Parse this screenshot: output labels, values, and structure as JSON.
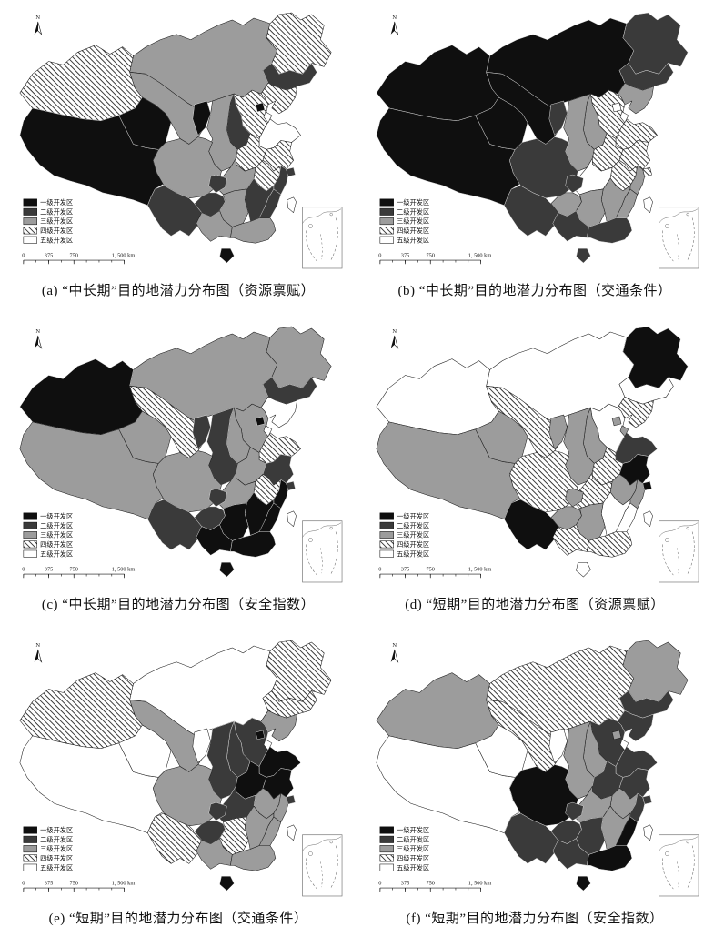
{
  "figure": {
    "north_label": "N",
    "legend": {
      "items": [
        {
          "label": "一级开发区",
          "level": 1,
          "fill": "#0f0f0f"
        },
        {
          "label": "二级开发区",
          "level": 2,
          "fill": "#3a3a3a"
        },
        {
          "label": "三级开发区",
          "level": 3,
          "fill": "#9c9c9c"
        },
        {
          "label": "四级开发区",
          "level": 4,
          "fill": "hatch"
        },
        {
          "label": "五级开发区",
          "level": 5,
          "fill": "#ffffff"
        }
      ]
    },
    "scalebar": {
      "tick_labels": [
        "0",
        "375",
        "750"
      ],
      "end_label": "1, 500 km"
    },
    "level_fills": {
      "1": "#0f0f0f",
      "2": "#3a3a3a",
      "3": "#9c9c9c",
      "4": "hatch",
      "5": "#ffffff"
    }
  },
  "maps": [
    {
      "id": "a",
      "caption": "(a) “中长期”目的地潜力分布图（资源禀赋）",
      "levels": {
        "xinjiang": 4,
        "tibet": 1,
        "qinghai": 1,
        "gansu": 3,
        "ningxia": 1,
        "neimenggu": 3,
        "heilongjiang": 4,
        "jilin": 2,
        "liaoning": 4,
        "hebei": 4,
        "beijing": 1,
        "tianjin": 5,
        "shanxi": 2,
        "shaanxi": 3,
        "shandong": 5,
        "henan": 4,
        "jiangsu": 4,
        "shanghai": 2,
        "anhui": 4,
        "hubei": 3,
        "zhejiang": 2,
        "fujian": 2,
        "jiangxi": 2,
        "hunan": 3,
        "chongqing": 2,
        "sichuan": 3,
        "guizhou": 2,
        "yunnan": 2,
        "guangxi": 3,
        "guangdong": 3,
        "hainan": 1,
        "taiwan": 5
      }
    },
    {
      "id": "b",
      "caption": "(b) “中长期”目的地潜力分布图（交通条件）",
      "levels": {
        "xinjiang": 1,
        "tibet": 1,
        "qinghai": 1,
        "gansu": 1,
        "ningxia": 2,
        "neimenggu": 1,
        "heilongjiang": 2,
        "jilin": 2,
        "liaoning": 3,
        "hebei": 4,
        "beijing": 5,
        "tianjin": 5,
        "shanxi": 3,
        "shaanxi": 3,
        "shandong": 4,
        "henan": 4,
        "jiangsu": 4,
        "shanghai": 4,
        "anhui": 4,
        "hubei": 5,
        "zhejiang": 3,
        "fujian": 3,
        "jiangxi": 3,
        "hunan": 3,
        "chongqing": 2,
        "sichuan": 2,
        "guizhou": 3,
        "yunnan": 2,
        "guangxi": 2,
        "guangdong": 2,
        "hainan": 2,
        "taiwan": 5
      }
    },
    {
      "id": "c",
      "caption": "(c) “中长期”目的地潜力分布图（安全指数）",
      "levels": {
        "xinjiang": 1,
        "tibet": 3,
        "qinghai": 3,
        "gansu": 4,
        "ningxia": 2,
        "neimenggu": 3,
        "heilongjiang": 3,
        "jilin": 2,
        "liaoning": 5,
        "hebei": 3,
        "beijing": 1,
        "tianjin": 5,
        "shanxi": 3,
        "shaanxi": 2,
        "shandong": 4,
        "henan": 3,
        "jiangsu": 2,
        "shanghai": 2,
        "anhui": 4,
        "hubei": 3,
        "zhejiang": 1,
        "fujian": 1,
        "jiangxi": 1,
        "hunan": 1,
        "chongqing": 2,
        "sichuan": 3,
        "guizhou": 2,
        "yunnan": 2,
        "guangxi": 1,
        "guangdong": 1,
        "hainan": 1,
        "taiwan": 5
      }
    },
    {
      "id": "d",
      "caption": "(d) “短期”目的地潜力分布图（资源禀赋）",
      "levels": {
        "xinjiang": 5,
        "tibet": 3,
        "qinghai": 3,
        "gansu": 4,
        "ningxia": 3,
        "neimenggu": 5,
        "heilongjiang": 1,
        "jilin": 5,
        "liaoning": 4,
        "hebei": 5,
        "beijing": 3,
        "tianjin": 3,
        "shanxi": 3,
        "shaanxi": 3,
        "shandong": 2,
        "henan": 4,
        "jiangsu": 1,
        "shanghai": 1,
        "anhui": 3,
        "hubei": 4,
        "zhejiang": 3,
        "fujian": 5,
        "jiangxi": 5,
        "hunan": 3,
        "chongqing": 3,
        "sichuan": 4,
        "guizhou": 3,
        "yunnan": 1,
        "guangxi": 4,
        "guangdong": 4,
        "hainan": 5,
        "taiwan": 5
      }
    },
    {
      "id": "e",
      "caption": "(e) “短期”目的地潜力分布图（交通条件）",
      "levels": {
        "xinjiang": 4,
        "tibet": 5,
        "qinghai": 5,
        "gansu": 3,
        "ningxia": 5,
        "neimenggu": 5,
        "heilongjiang": 4,
        "jilin": 4,
        "liaoning": 3,
        "hebei": 2,
        "beijing": 1,
        "tianjin": 5,
        "shanxi": 2,
        "shaanxi": 2,
        "shandong": 1,
        "henan": 1,
        "jiangsu": 1,
        "shanghai": 2,
        "anhui": 3,
        "hubei": 2,
        "zhejiang": 3,
        "fujian": 3,
        "jiangxi": 3,
        "hunan": 4,
        "chongqing": 2,
        "sichuan": 3,
        "guizhou": 2,
        "yunnan": 4,
        "guangxi": 3,
        "guangdong": 3,
        "hainan": 1,
        "taiwan": 5
      }
    },
    {
      "id": "f",
      "caption": "(f) “短期”目的地潜力分布图（安全指数）",
      "levels": {
        "xinjiang": 3,
        "tibet": 5,
        "qinghai": 5,
        "gansu": 4,
        "ningxia": 5,
        "neimenggu": 4,
        "heilongjiang": 3,
        "jilin": 2,
        "liaoning": 2,
        "hebei": 2,
        "beijing": 3,
        "tianjin": 5,
        "shanxi": 3,
        "shaanxi": 3,
        "shandong": 2,
        "henan": 2,
        "jiangsu": 2,
        "shanghai": 2,
        "anhui": 3,
        "hubei": 3,
        "zhejiang": 2,
        "fujian": 1,
        "jiangxi": 3,
        "hunan": 2,
        "chongqing": 2,
        "sichuan": 1,
        "guizhou": 2,
        "yunnan": 2,
        "guangxi": 2,
        "guangdong": 1,
        "hainan": 1,
        "taiwan": 5
      }
    }
  ]
}
